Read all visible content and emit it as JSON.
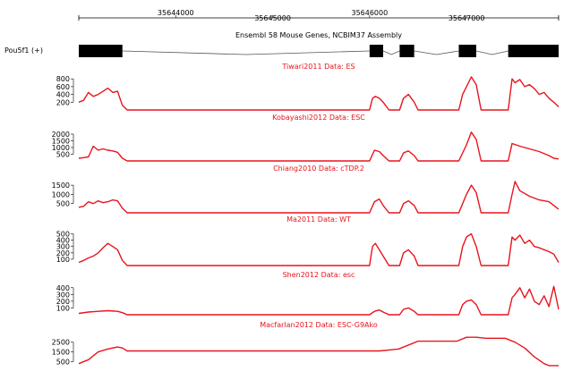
{
  "genome_axis": {
    "ticks": [
      {
        "label": "35644000",
        "pos": 35644000
      },
      {
        "label": "35645000",
        "pos": 35645000
      },
      {
        "label": "35646000",
        "pos": 35646000
      },
      {
        "label": "35647000",
        "pos": 35647000
      }
    ],
    "range": [
      35643000,
      35647950
    ]
  },
  "gene_track": {
    "title": "Ensembl 58 Mouse Genes, NCBIM37 Assembly",
    "gene_label": "Pou5f1 (+)",
    "exons": [
      [
        35643000,
        35643450
      ],
      [
        35646000,
        35646140
      ],
      [
        35646310,
        35646460
      ],
      [
        35646920,
        35647100
      ],
      [
        35647430,
        35647950
      ]
    ]
  },
  "chart_data": [
    {
      "type": "line",
      "title": "Tiwari2011 Data: ES",
      "yticks": [
        200,
        400,
        600,
        800
      ],
      "ylim": [
        0,
        850
      ],
      "color": "#e8141c",
      "x": [
        35643000,
        35643050,
        35643100,
        35643150,
        35643200,
        35643250,
        35643300,
        35643350,
        35643400,
        35643450,
        35643500,
        35646000,
        35646030,
        35646060,
        35646100,
        35646140,
        35646200,
        35646310,
        35646350,
        35646400,
        35646460,
        35646500,
        35646920,
        35646960,
        35647000,
        35647050,
        35647100,
        35647150,
        35647430,
        35647470,
        35647500,
        35647550,
        35647600,
        35647650,
        35647700,
        35647750,
        35647800,
        35647850,
        35647900,
        35647950
      ],
      "y": [
        200,
        250,
        450,
        350,
        400,
        480,
        560,
        450,
        480,
        120,
        0,
        0,
        300,
        350,
        300,
        200,
        0,
        0,
        300,
        400,
        200,
        0,
        0,
        400,
        600,
        850,
        650,
        0,
        0,
        800,
        700,
        780,
        600,
        650,
        550,
        400,
        450,
        300,
        200,
        80
      ]
    },
    {
      "type": "line",
      "title": "Kobayashi2012 Data: ESC",
      "yticks": [
        500,
        1000,
        1500,
        2000
      ],
      "ylim": [
        0,
        2200
      ],
      "color": "#e8141c",
      "x": [
        35643000,
        35643050,
        35643100,
        35643150,
        35643200,
        35643250,
        35643300,
        35643350,
        35643400,
        35643450,
        35643500,
        35646000,
        35646050,
        35646100,
        35646140,
        35646200,
        35646310,
        35646350,
        35646400,
        35646460,
        35646500,
        35646920,
        35646960,
        35647000,
        35647050,
        35647100,
        35647150,
        35647430,
        35647470,
        35647550,
        35647650,
        35647750,
        35647850,
        35647900,
        35647950
      ],
      "y": [
        200,
        250,
        300,
        1100,
        800,
        900,
        800,
        750,
        650,
        200,
        0,
        0,
        800,
        700,
        400,
        0,
        0,
        600,
        750,
        400,
        0,
        0,
        600,
        1200,
        2150,
        1600,
        0,
        0,
        1300,
        1100,
        900,
        700,
        400,
        200,
        150
      ]
    },
    {
      "type": "line",
      "title": "Chiang2010 Data: cTDP.2",
      "yticks": [
        500,
        1000,
        1500
      ],
      "ylim": [
        0,
        1700
      ],
      "color": "#e8141c",
      "x": [
        35643000,
        35643050,
        35643100,
        35643150,
        35643200,
        35643250,
        35643300,
        35643350,
        35643400,
        35643450,
        35643500,
        35646000,
        35646050,
        35646100,
        35646140,
        35646200,
        35646310,
        35646350,
        35646400,
        35646460,
        35646500,
        35646920,
        35646960,
        35647000,
        35647050,
        35647100,
        35647150,
        35647430,
        35647470,
        35647500,
        35647550,
        35647650,
        35647750,
        35647850,
        35647900,
        35647950
      ],
      "y": [
        300,
        350,
        600,
        500,
        650,
        550,
        600,
        700,
        650,
        250,
        0,
        0,
        600,
        750,
        400,
        0,
        0,
        500,
        650,
        400,
        0,
        0,
        500,
        1000,
        1500,
        1100,
        0,
        0,
        1000,
        1700,
        1200,
        900,
        700,
        600,
        400,
        200
      ]
    },
    {
      "type": "line",
      "title": "Ma2011 Data: WT",
      "yticks": [
        100,
        200,
        300,
        400,
        500
      ],
      "ylim": [
        0,
        550
      ],
      "color": "#e8141c",
      "x": [
        35643000,
        35643050,
        35643100,
        35643150,
        35643200,
        35643250,
        35643300,
        35643350,
        35643400,
        35643450,
        35643500,
        35646000,
        35646030,
        35646060,
        35646100,
        35646140,
        35646200,
        35646310,
        35646350,
        35646400,
        35646460,
        35646500,
        35646920,
        35646960,
        35647000,
        35647050,
        35647100,
        35647150,
        35647430,
        35647470,
        35647500,
        35647550,
        35647600,
        35647650,
        35647700,
        35647750,
        35647800,
        35647850,
        35647900,
        35647950
      ],
      "y": [
        50,
        80,
        120,
        150,
        200,
        280,
        350,
        300,
        250,
        80,
        0,
        0,
        300,
        350,
        250,
        150,
        0,
        0,
        200,
        250,
        150,
        0,
        0,
        300,
        450,
        500,
        300,
        0,
        0,
        450,
        400,
        480,
        350,
        400,
        300,
        280,
        250,
        220,
        180,
        50
      ]
    },
    {
      "type": "line",
      "title": "Shen2012 Data: esc",
      "yticks": [
        100,
        200,
        300,
        400
      ],
      "ylim": [
        0,
        450
      ],
      "color": "#e8141c",
      "x": [
        35643000,
        35643100,
        35643200,
        35643300,
        35643400,
        35643450,
        35643500,
        35646000,
        35646050,
        35646100,
        35646140,
        35646200,
        35646310,
        35646350,
        35646400,
        35646460,
        35646500,
        35646920,
        35646960,
        35647000,
        35647050,
        35647100,
        35647150,
        35647430,
        35647470,
        35647500,
        35647550,
        35647600,
        35647650,
        35647700,
        35647750,
        35647800,
        35647850,
        35647900,
        35647950
      ],
      "y": [
        20,
        40,
        50,
        60,
        50,
        30,
        0,
        0,
        50,
        70,
        40,
        0,
        0,
        80,
        100,
        50,
        0,
        0,
        150,
        200,
        220,
        150,
        0,
        0,
        250,
        300,
        400,
        250,
        380,
        200,
        150,
        280,
        120,
        420,
        80
      ]
    },
    {
      "type": "line",
      "title": "Macfarlan2012 Data: ESC-G9Ako",
      "yticks": [
        500,
        1500,
        2500
      ],
      "ylim": [
        0,
        3200
      ],
      "color": "#e8141c",
      "x": [
        35643000,
        35643100,
        35643200,
        35643300,
        35643400,
        35643450,
        35643500,
        35644000,
        35645000,
        35646000,
        35646100,
        35646200,
        35646300,
        35646500,
        35646900,
        35647000,
        35647100,
        35647200,
        35647400,
        35647500,
        35647600,
        35647700,
        35647800,
        35647850,
        35647950
      ],
      "y": [
        300,
        700,
        1500,
        1800,
        2000,
        1900,
        1600,
        1600,
        1600,
        1600,
        1600,
        1700,
        1800,
        2600,
        2600,
        3000,
        3000,
        2900,
        2900,
        2500,
        1900,
        1000,
        300,
        100,
        100
      ]
    }
  ]
}
